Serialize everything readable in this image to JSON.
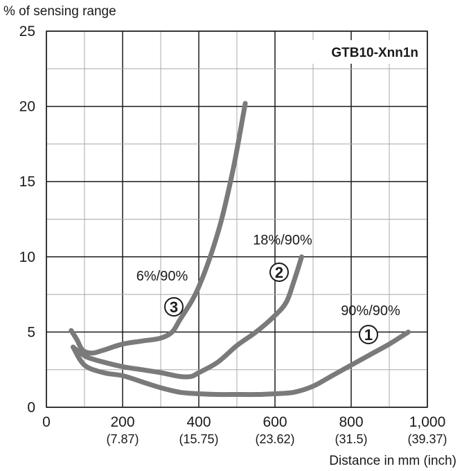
{
  "chart_data": {
    "type": "line",
    "title": "GTB10-Xnn1n",
    "ylabel": "% of sensing range",
    "xlabel": "Distance in mm (inch)",
    "xlim": [
      0,
      1000
    ],
    "ylim": [
      0,
      25
    ],
    "grid": true,
    "x_ticks": [
      {
        "value": 0,
        "label": "0",
        "sub": ""
      },
      {
        "value": 200,
        "label": "200",
        "sub": "(7.87)"
      },
      {
        "value": 400,
        "label": "400",
        "sub": "(15.75)"
      },
      {
        "value": 600,
        "label": "600",
        "sub": "(23.62)"
      },
      {
        "value": 800,
        "label": "800",
        "sub": "(31.5)"
      },
      {
        "value": 1000,
        "label": "1,000",
        "sub": "(39.37)"
      }
    ],
    "y_ticks": [
      {
        "value": 0,
        "label": "0"
      },
      {
        "value": 5,
        "label": "5"
      },
      {
        "value": 10,
        "label": "10"
      },
      {
        "value": 15,
        "label": "15"
      },
      {
        "value": 20,
        "label": "20"
      },
      {
        "value": 25,
        "label": "25"
      }
    ],
    "series_color": "#7a7a7a",
    "series": [
      {
        "marker": "1",
        "label": "90%/90%",
        "x": [
          70,
          100,
          150,
          200,
          250,
          300,
          350,
          400,
          450,
          500,
          550,
          600,
          650,
          700,
          750,
          800,
          850,
          900,
          950
        ],
        "y": [
          4.0,
          2.8,
          2.3,
          2.1,
          1.7,
          1.3,
          1.0,
          0.9,
          0.85,
          0.85,
          0.85,
          0.9,
          1.0,
          1.4,
          2.1,
          2.8,
          3.5,
          4.2,
          5.0
        ]
      },
      {
        "marker": "2",
        "label": "18%/90%",
        "x": [
          70,
          90,
          110,
          150,
          200,
          250,
          300,
          350,
          380,
          400,
          450,
          500,
          550,
          600,
          630,
          650,
          670
        ],
        "y": [
          4.0,
          3.6,
          3.3,
          3.0,
          2.7,
          2.5,
          2.3,
          2.05,
          2.05,
          2.3,
          3.0,
          4.1,
          5.0,
          6.1,
          7.0,
          8.4,
          10.0
        ]
      },
      {
        "marker": "3",
        "label": "6%/90%",
        "x": [
          65,
          80,
          95,
          120,
          150,
          200,
          250,
          300,
          330,
          350,
          380,
          400,
          430,
          460,
          490,
          510,
          522
        ],
        "y": [
          5.1,
          4.5,
          3.8,
          3.6,
          3.8,
          4.2,
          4.4,
          4.6,
          5.0,
          5.8,
          7.0,
          8.0,
          10.0,
          12.5,
          15.8,
          18.5,
          20.2
        ]
      }
    ]
  }
}
